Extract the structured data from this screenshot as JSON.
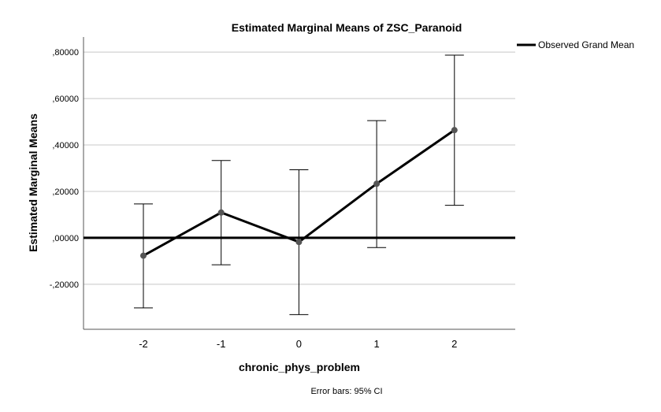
{
  "chart_data": {
    "type": "line",
    "title": "Estimated Marginal Means of ZSC_Paranoid",
    "xlabel": "chronic_phys_problem",
    "ylabel": "Estimated Marginal Means",
    "categories": [
      "-2",
      "-1",
      "0",
      "1",
      "2"
    ],
    "series": [
      {
        "values": [
          -0.077,
          0.109,
          -0.018,
          0.233,
          0.464
        ],
        "ci_lower": [
          -0.302,
          -0.116,
          -0.331,
          -0.042,
          0.14
        ],
        "ci_upper": [
          0.146,
          0.333,
          0.293,
          0.505,
          0.787
        ]
      }
    ],
    "reference_line": {
      "name": "Observed Grand Mean",
      "value": 0.0
    },
    "yticks": [
      0.8,
      0.6,
      0.4,
      0.2,
      0.0,
      -0.2
    ],
    "ytick_labels": [
      ",80000",
      ",60000",
      ",40000",
      ",20000",
      ",00000",
      "-,20000"
    ],
    "ylim": [
      -0.394,
      0.865
    ],
    "grid": "horizontal",
    "legend_position": "top-right",
    "footnote": "Error bars: 95% CI",
    "colors": {
      "line": "#000000",
      "marker": "#555555",
      "grid": "#c8c8c8"
    }
  }
}
